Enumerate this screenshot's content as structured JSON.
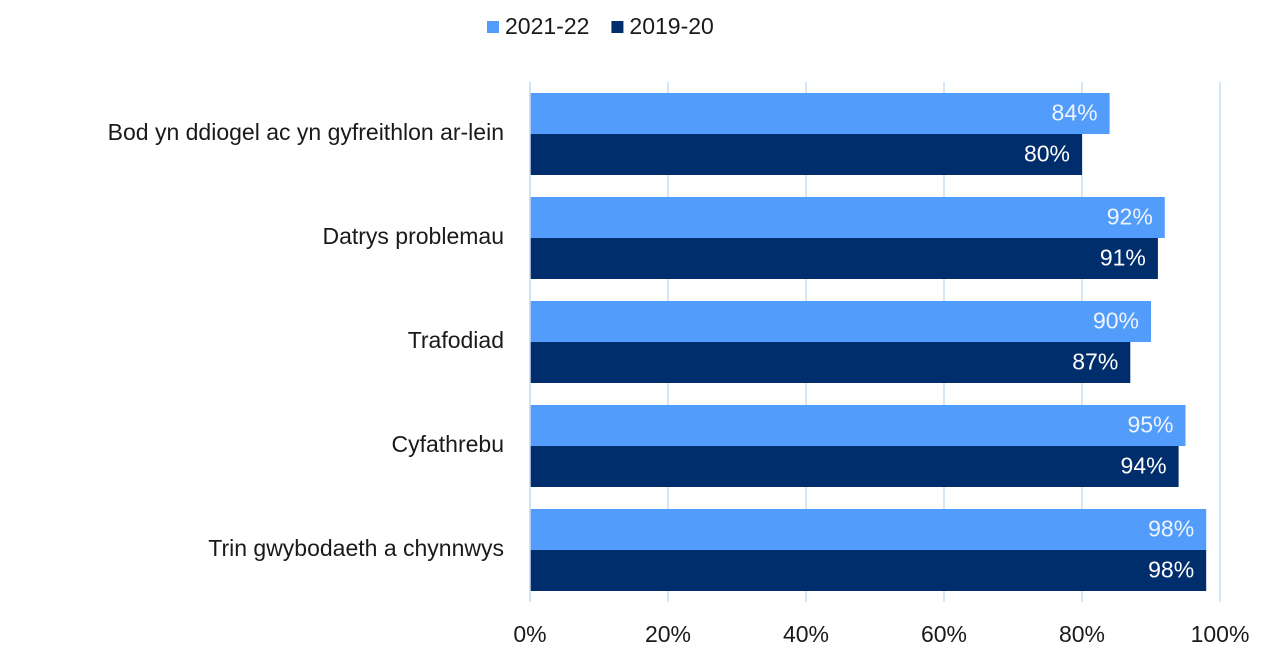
{
  "chart_data": {
    "type": "bar",
    "orientation": "horizontal",
    "categories": [
      "Bod yn ddiogel ac yn gyfreithlon ar-lein",
      "Datrys problemau",
      "Trafodiad",
      "Cyfathrebu",
      "Trin gwybodaeth a chynnwys"
    ],
    "series": [
      {
        "name": "2021-22",
        "color": "#529dfb",
        "values": [
          84,
          92,
          90,
          95,
          98
        ],
        "value_labels": [
          "84%",
          "92%",
          "90%",
          "95%",
          "98%"
        ]
      },
      {
        "name": "2019-20",
        "color": "#002d6b",
        "values": [
          80,
          91,
          87,
          94,
          98
        ],
        "value_labels": [
          "80%",
          "91%",
          "87%",
          "94%",
          "98%"
        ]
      }
    ],
    "xlim": [
      0,
      100
    ],
    "xticks": [
      {
        "value": 0,
        "label": "0%"
      },
      {
        "value": 20,
        "label": "20%"
      },
      {
        "value": 40,
        "label": "40%"
      },
      {
        "value": 60,
        "label": "60%"
      },
      {
        "value": 80,
        "label": "80%"
      },
      {
        "value": 100,
        "label": "100%"
      }
    ],
    "grid": true,
    "legend": "top"
  }
}
